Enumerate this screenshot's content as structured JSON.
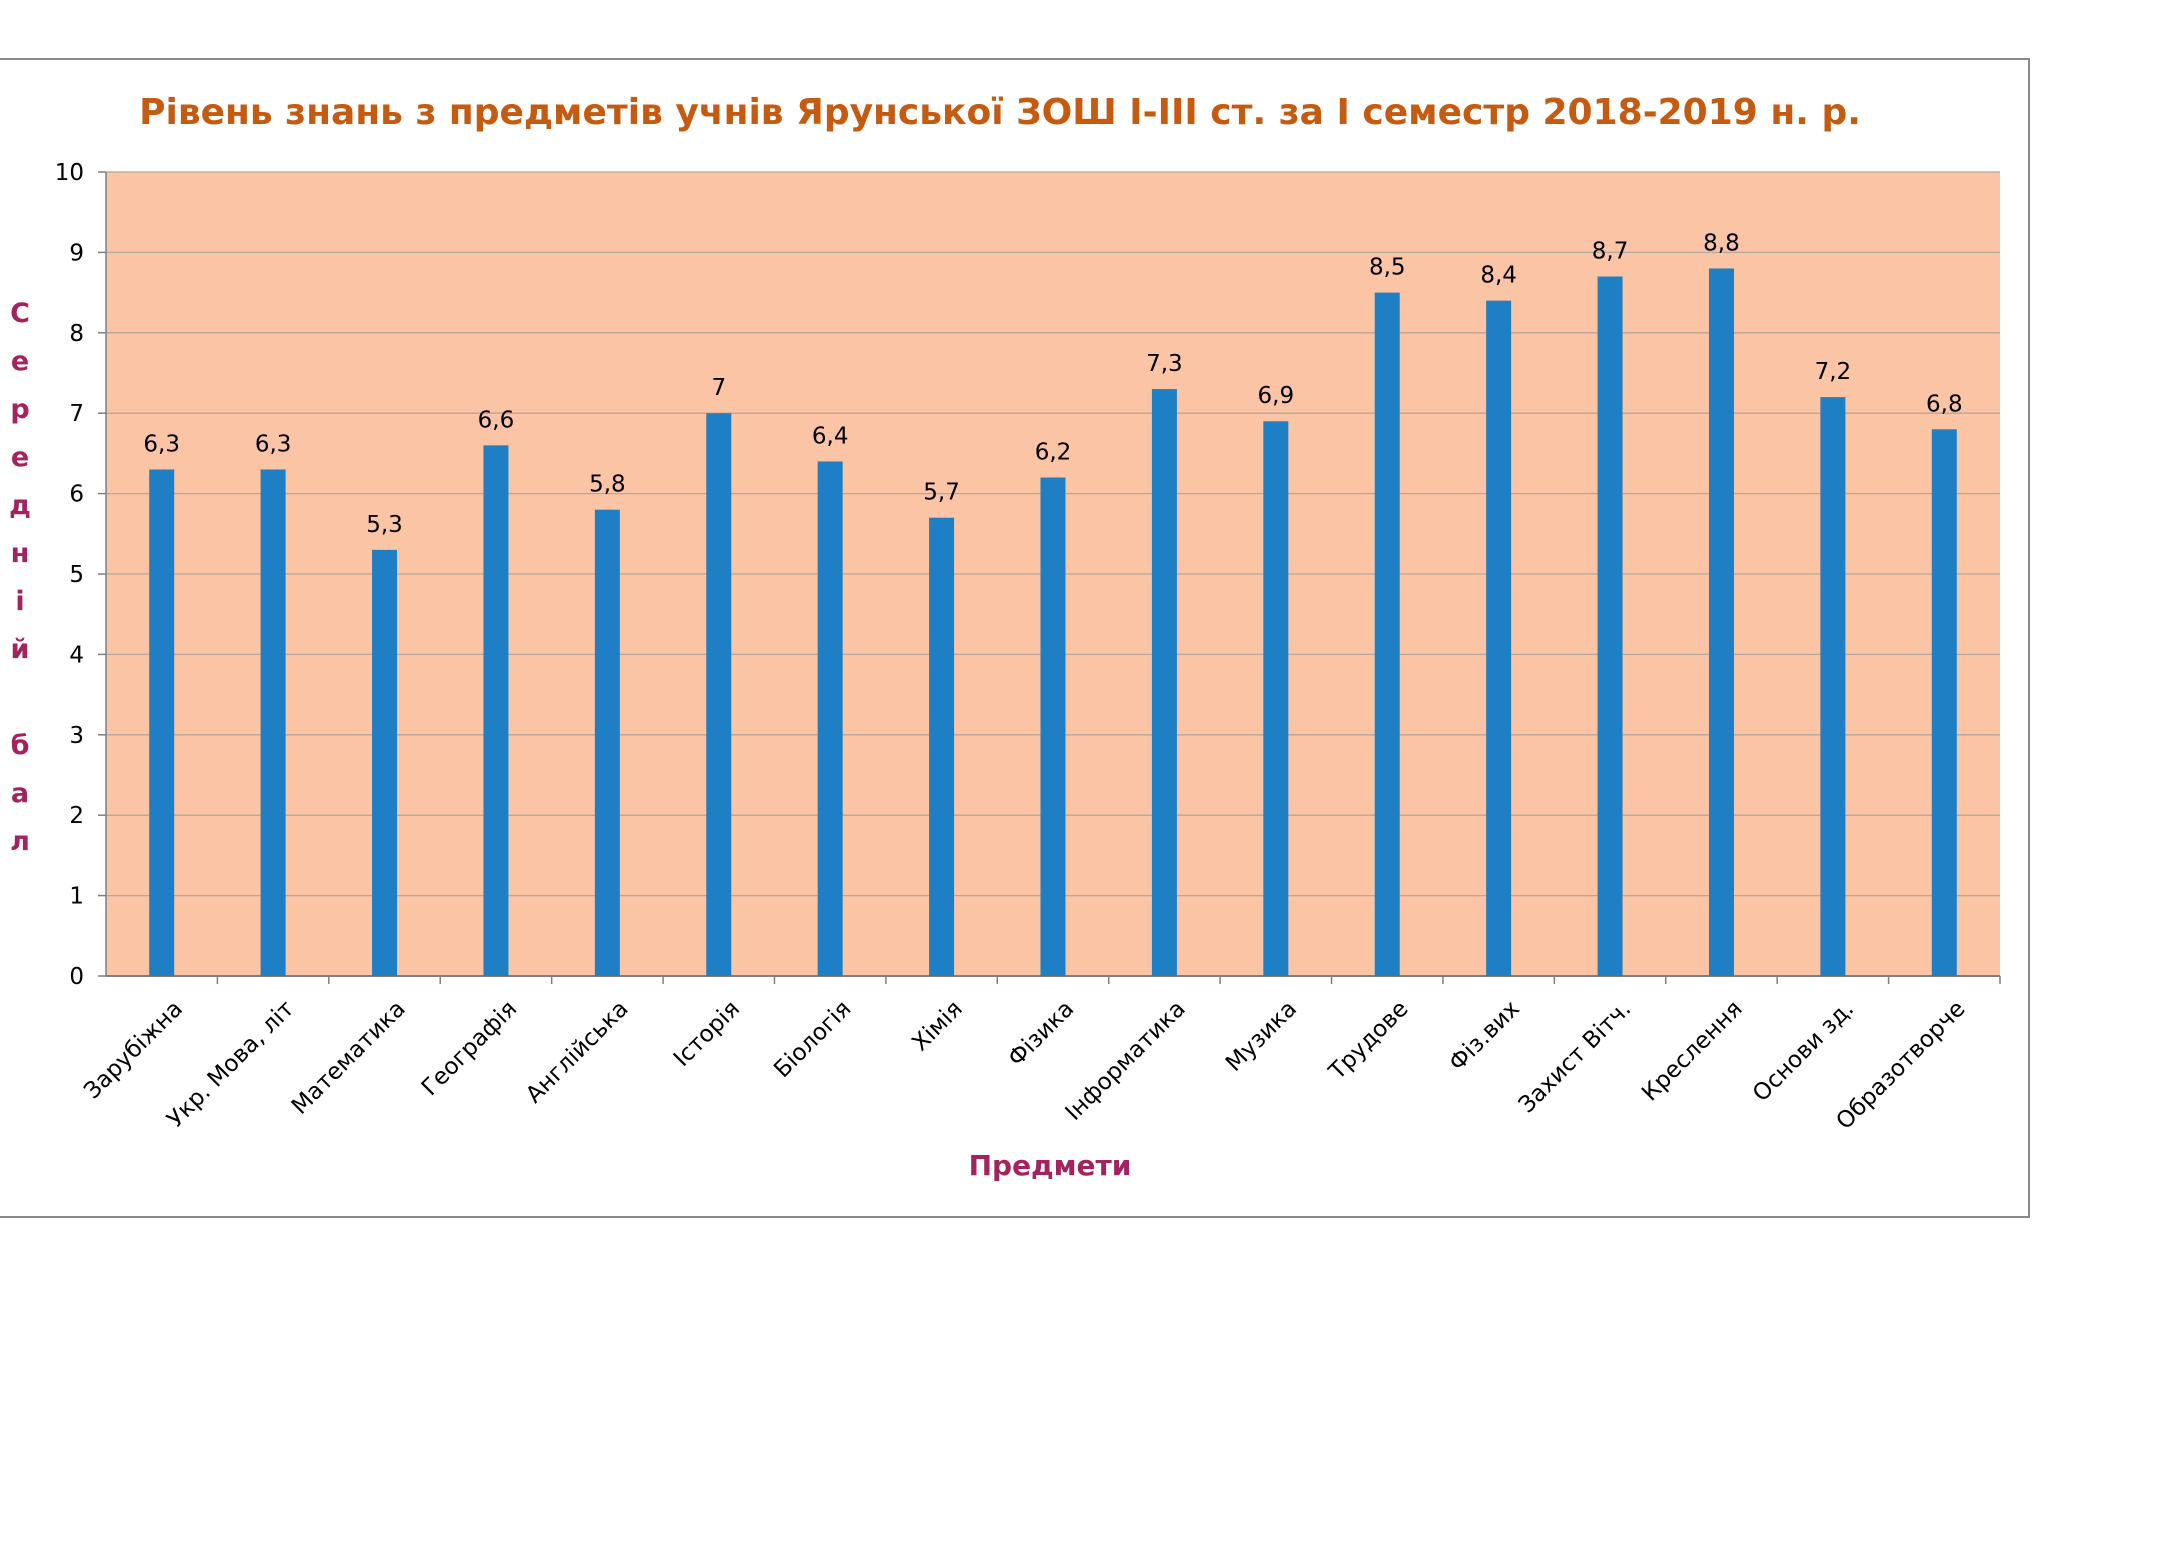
{
  "colors": {
    "plot_background": "#fbc4a5",
    "bar": "#1f7fc4",
    "title": "#c55a11",
    "axis_label": "#a4235e",
    "gridline": "#b8a79c"
  },
  "chart_data": {
    "type": "bar",
    "title": "Рівень знань з предметів учнів Ярунської ЗОШ І-ІІІ ст. за І семестр 2018-2019 н. р.",
    "xlabel": "Предмети",
    "ylabel": "Середній бал",
    "ylim": [
      0,
      10
    ],
    "yticks": [
      "0",
      "1",
      "2",
      "3",
      "4",
      "5",
      "6",
      "7",
      "8",
      "9",
      "10"
    ],
    "grid": true,
    "legend": "none",
    "categories": [
      "Зарубіжна",
      "Укр. Мова, літ",
      "Математика",
      "Географія",
      "Англійська",
      "Історія",
      "Біологія",
      "Хімія",
      "Фізика",
      "Інформатика",
      "Музика",
      "Трудове",
      "Фіз.вих",
      "Захист Вітч.",
      "Креслення",
      "Основи зд.",
      "Образотворче"
    ],
    "values": [
      6.3,
      6.3,
      5.3,
      6.6,
      5.8,
      7,
      6.4,
      5.7,
      6.2,
      7.3,
      6.9,
      8.5,
      8.4,
      8.7,
      8.8,
      7.2,
      6.8
    ],
    "value_labels": [
      "6,3",
      "6,3",
      "5,3",
      "6,6",
      "5,8",
      "7",
      "6,4",
      "5,7",
      "6,2",
      "7,3",
      "6,9",
      "8,5",
      "8,4",
      "8,7",
      "8,8",
      "7,2",
      "6,8"
    ]
  }
}
